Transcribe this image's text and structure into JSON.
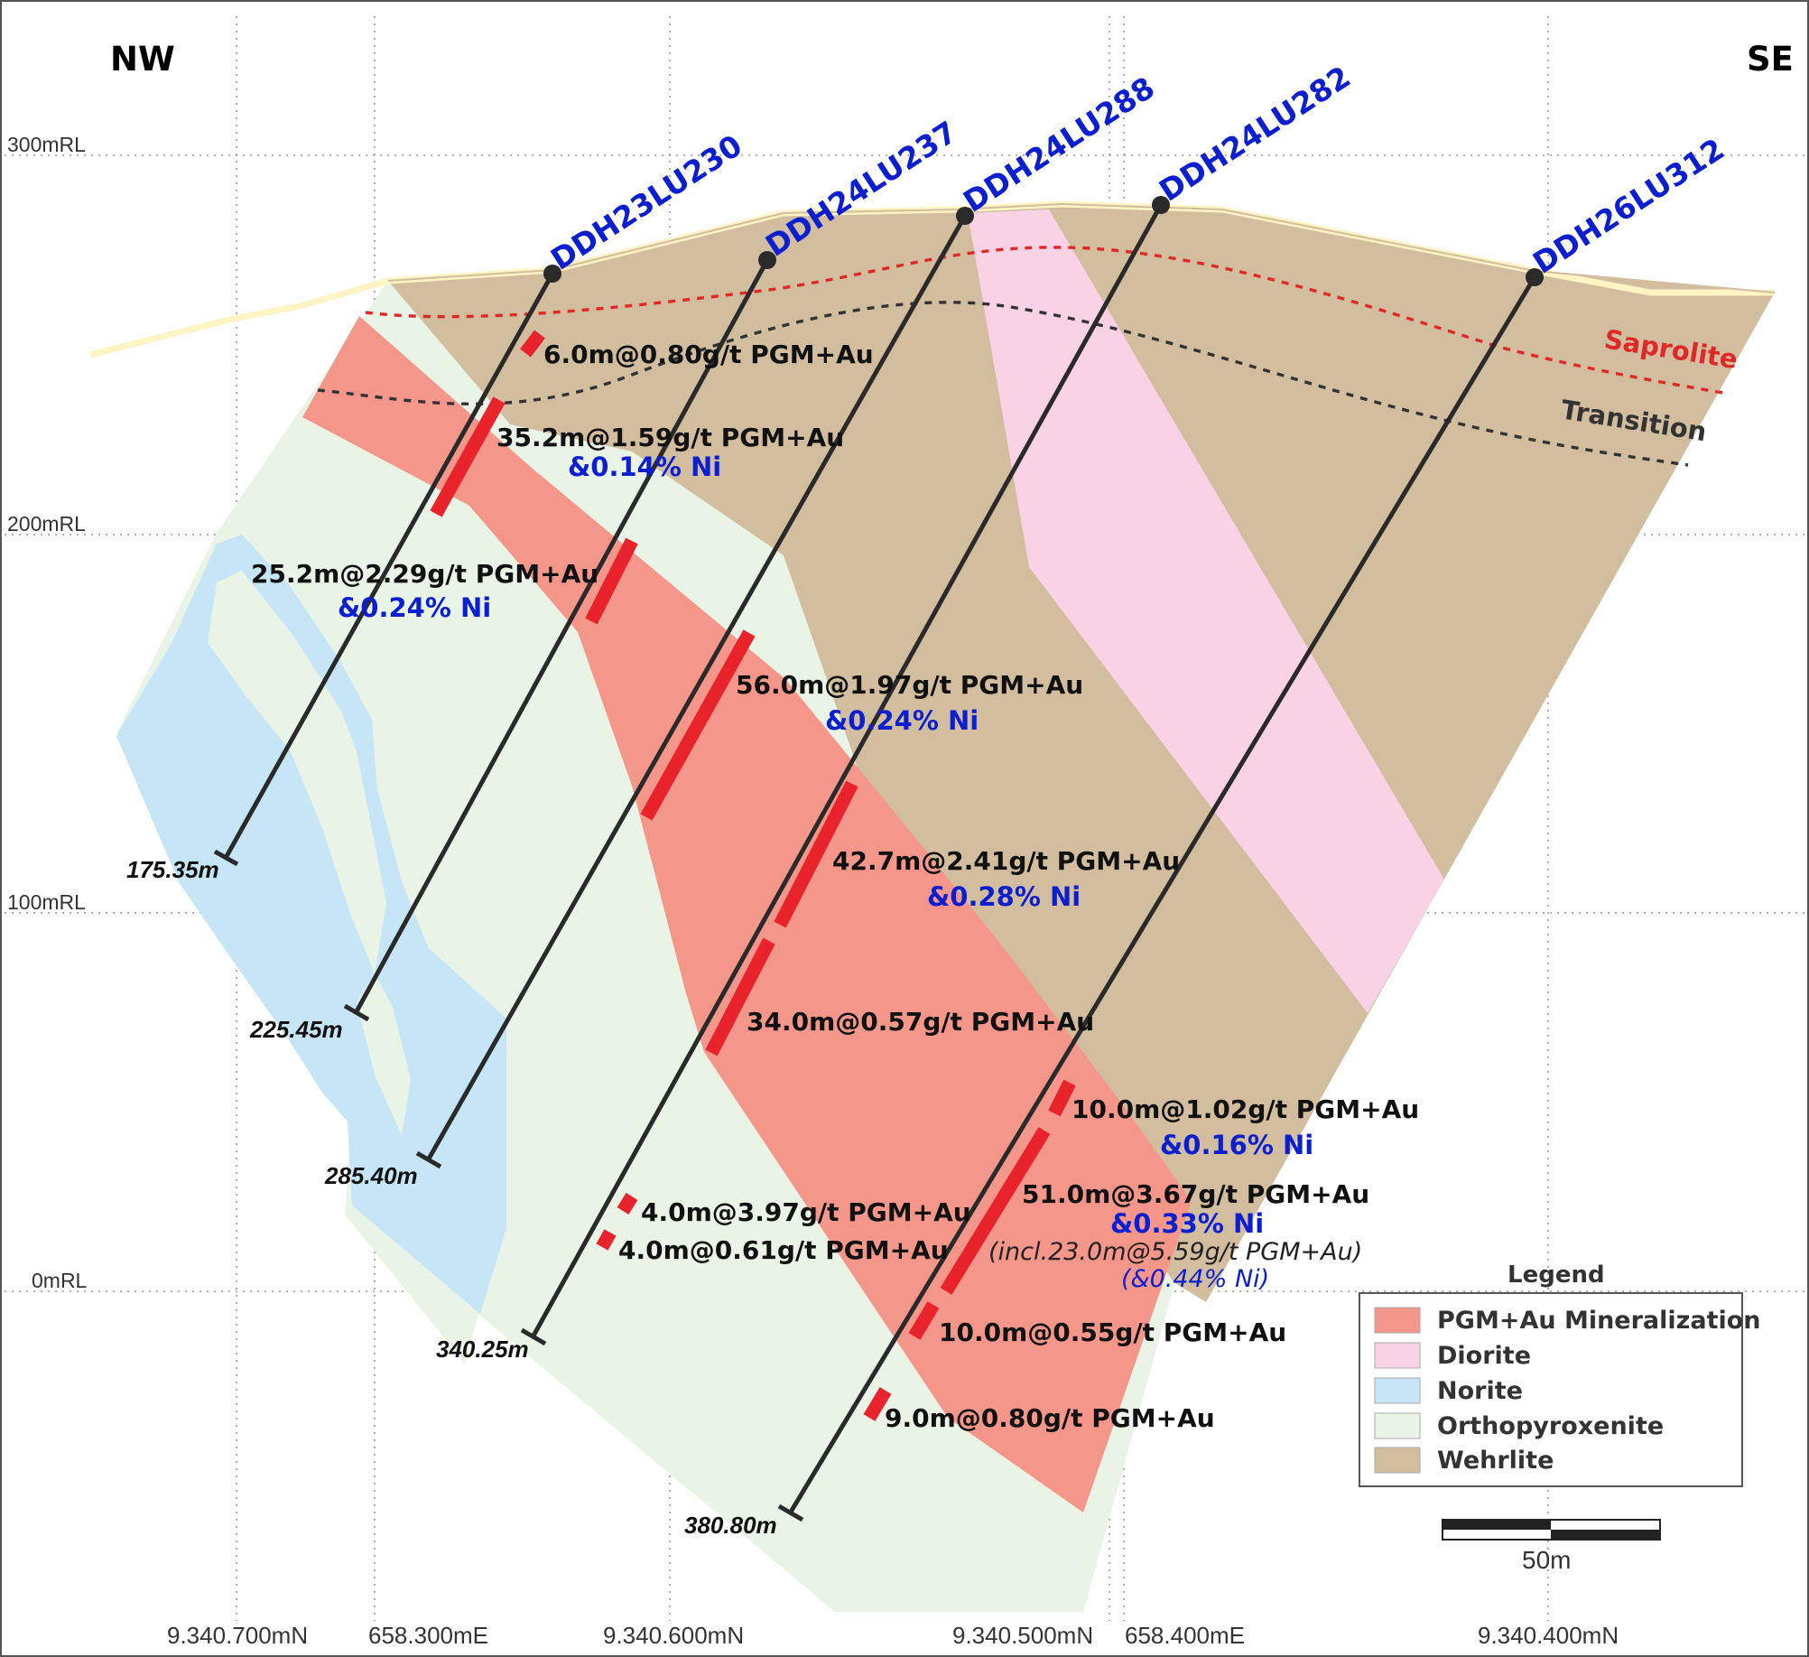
{
  "section": {
    "direction_left": "NW",
    "direction_right": "SE",
    "rl_labels": [
      "300mRL",
      "200mRL",
      "100mRL",
      "0mRL"
    ],
    "coord_labels": [
      "9.340.700mN",
      "658.300mE",
      "9.340.600mN",
      "9.340.500mN",
      "658.400mE",
      "9.340.400mN"
    ]
  },
  "boundaries": {
    "saprolite": "Saprolite",
    "transition": "Transition"
  },
  "holes": [
    {
      "name": "DDH23LU230",
      "end_depth": "175.35m"
    },
    {
      "name": "DDH24LU237",
      "end_depth": "225.45m"
    },
    {
      "name": "DDH24LU288",
      "end_depth": "285.40m"
    },
    {
      "name": "DDH24LU282",
      "end_depth": "340.25m"
    },
    {
      "name": "DDH26LU312",
      "end_depth": "380.80m"
    }
  ],
  "intercepts": [
    {
      "main": "6.0m@0.80g/t PGM+Au"
    },
    {
      "main": "35.2m@1.59g/t PGM+Au",
      "ni": "&0.14% Ni"
    },
    {
      "main": "25.2m@2.29g/t PGM+Au",
      "ni": "&0.24% Ni"
    },
    {
      "main": "56.0m@1.97g/t PGM+Au",
      "ni": "&0.24% Ni"
    },
    {
      "main": "42.7m@2.41g/t PGM+Au",
      "ni": "&0.28% Ni"
    },
    {
      "main": "34.0m@0.57g/t PGM+Au"
    },
    {
      "main": "10.0m@1.02g/t PGM+Au",
      "ni": "&0.16% Ni"
    },
    {
      "main": "51.0m@3.67g/t PGM+Au",
      "ni": "&0.33% Ni",
      "incl": "(incl.23.0m@5.59g/t PGM+Au)",
      "incl_ni": "(&0.44% Ni)"
    },
    {
      "main": "4.0m@3.97g/t PGM+Au"
    },
    {
      "main": "4.0m@0.61g/t PGM+Au"
    },
    {
      "main": "10.0m@0.55g/t PGM+Au"
    },
    {
      "main": "9.0m@0.80g/t PGM+Au"
    }
  ],
  "legend": {
    "title": "Legend",
    "items": [
      {
        "label": "PGM+Au Mineralization",
        "color": "#f4978a"
      },
      {
        "label": "Diorite",
        "color": "#f9d2e5"
      },
      {
        "label": "Norite",
        "color": "#c6e6f7"
      },
      {
        "label": "Orthopyroxenite",
        "color": "#e9f3e6"
      },
      {
        "label": "Wehrlite",
        "color": "#d2bd9e"
      }
    ]
  },
  "scale_bar": {
    "label": "50m"
  },
  "colors": {
    "hole_trace": "#2a2a2a",
    "intercept": "#e8232b",
    "saprolite_line": "#e02828",
    "transition_line": "#333333",
    "hole_label": "#0b1fd1",
    "topography": "#fff4c4"
  }
}
